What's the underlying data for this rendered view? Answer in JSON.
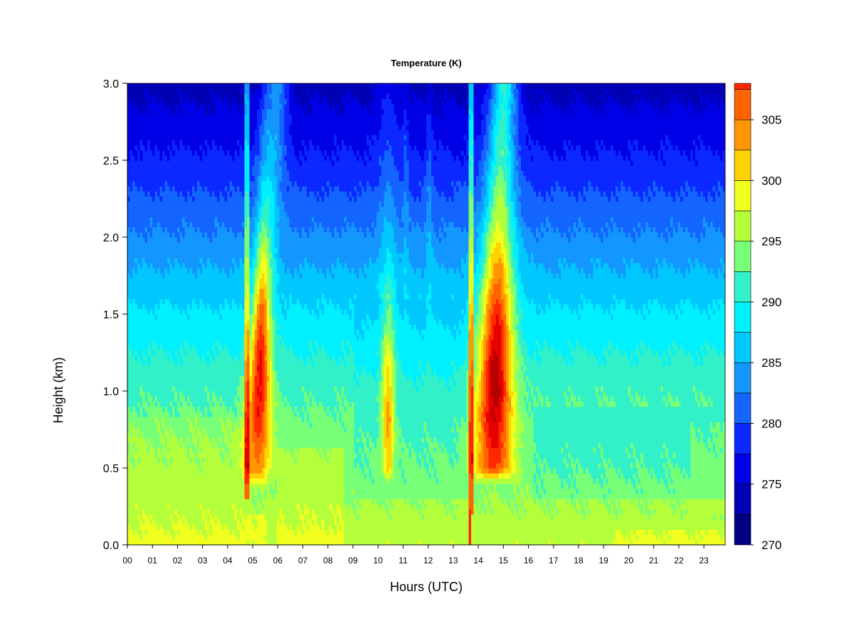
{
  "chart_data": {
    "type": "heatmap",
    "title": "Temperature (K)",
    "xlabel": "Hours (UTC)",
    "ylabel": "Height (km)",
    "xlim": [
      0,
      23.85
    ],
    "ylim": [
      0.0,
      3.0
    ],
    "x_ticks": [
      "00",
      "01",
      "02",
      "03",
      "04",
      "05",
      "06",
      "07",
      "08",
      "09",
      "10",
      "11",
      "12",
      "13",
      "14",
      "15",
      "16",
      "17",
      "18",
      "19",
      "20",
      "21",
      "22",
      "23"
    ],
    "y_ticks": [
      "0.0",
      "0.5",
      "1.0",
      "1.5",
      "2.0",
      "2.5",
      "3.0"
    ],
    "colorbar": {
      "min": 270,
      "max": 308,
      "step": 2.5,
      "tick_values": [
        270,
        275,
        280,
        285,
        290,
        295,
        300,
        305
      ],
      "tick_labels": [
        "270",
        "275",
        "280",
        "285",
        "290",
        "295",
        "300",
        "305"
      ],
      "colors": [
        "#000080",
        "#0000B4",
        "#0000E6",
        "#0A28FF",
        "#1464FF",
        "#1496FF",
        "#00C8FF",
        "#00F0FF",
        "#32F0C8",
        "#78FF78",
        "#B4FF3C",
        "#F0FF1E",
        "#FFD200",
        "#FF9600",
        "#FF6400",
        "#FF2800",
        "#E60000",
        "#B40000",
        "#780000"
      ]
    },
    "background_profile": {
      "heights_km": [
        0.0,
        0.1,
        0.5,
        0.8,
        1.0,
        1.5,
        2.0,
        2.5,
        3.0
      ],
      "temperature_K": [
        297,
        296,
        294,
        293,
        292,
        288,
        283,
        278,
        274
      ]
    },
    "warm_plumes": [
      {
        "center_hour": 5.3,
        "height_range_km": [
          0.5,
          3.0
        ],
        "peak_K": 306
      },
      {
        "center_hour": 10.4,
        "height_range_km": [
          0.5,
          3.0
        ],
        "peak_K": 301
      },
      {
        "center_hour": 14.7,
        "height_range_km": [
          0.5,
          3.0
        ],
        "peak_K": 307
      }
    ]
  }
}
